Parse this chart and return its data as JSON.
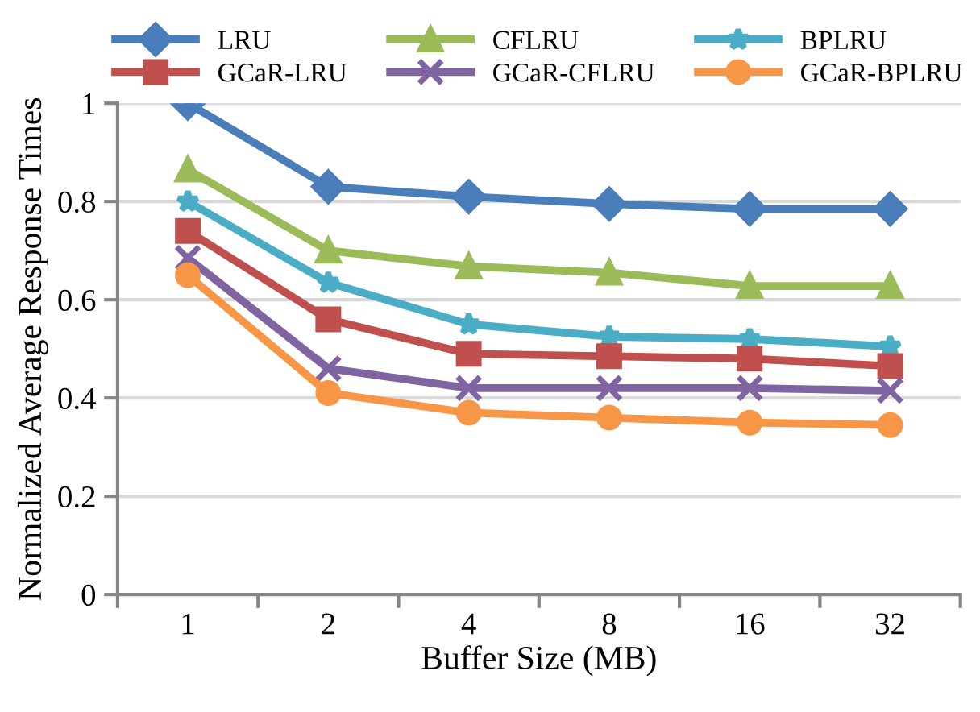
{
  "chart_data": {
    "type": "line",
    "xlabel": "Buffer Size (MB)",
    "ylabel": "Normalized Average Response Times",
    "categories": [
      "1",
      "2",
      "4",
      "8",
      "16",
      "32"
    ],
    "ylim": [
      0,
      1
    ],
    "yticks": [
      0,
      0.2,
      0.4,
      0.6,
      0.8,
      1
    ],
    "grid": "y",
    "legend": "top",
    "series": [
      {
        "name": "LRU",
        "color": "#4a7ebb",
        "marker": "diamond",
        "values": [
          1.0,
          0.83,
          0.81,
          0.795,
          0.785,
          0.785
        ]
      },
      {
        "name": "CFLRU",
        "color": "#9bbb59",
        "marker": "triangle",
        "values": [
          0.865,
          0.7,
          0.668,
          0.655,
          0.628,
          0.628
        ]
      },
      {
        "name": "BPLRU",
        "color": "#4bacc6",
        "marker": "star",
        "values": [
          0.8,
          0.635,
          0.55,
          0.525,
          0.52,
          0.505
        ]
      },
      {
        "name": "GCaR-LRU",
        "color": "#c0504d",
        "marker": "square",
        "values": [
          0.74,
          0.56,
          0.49,
          0.485,
          0.48,
          0.465
        ]
      },
      {
        "name": "GCaR-CFLRU",
        "color": "#8064a2",
        "marker": "cross",
        "values": [
          0.685,
          0.46,
          0.42,
          0.42,
          0.42,
          0.415
        ]
      },
      {
        "name": "GCaR-BPLRU",
        "color": "#f79646",
        "marker": "circle",
        "values": [
          0.65,
          0.41,
          0.37,
          0.36,
          0.35,
          0.345
        ]
      }
    ]
  }
}
